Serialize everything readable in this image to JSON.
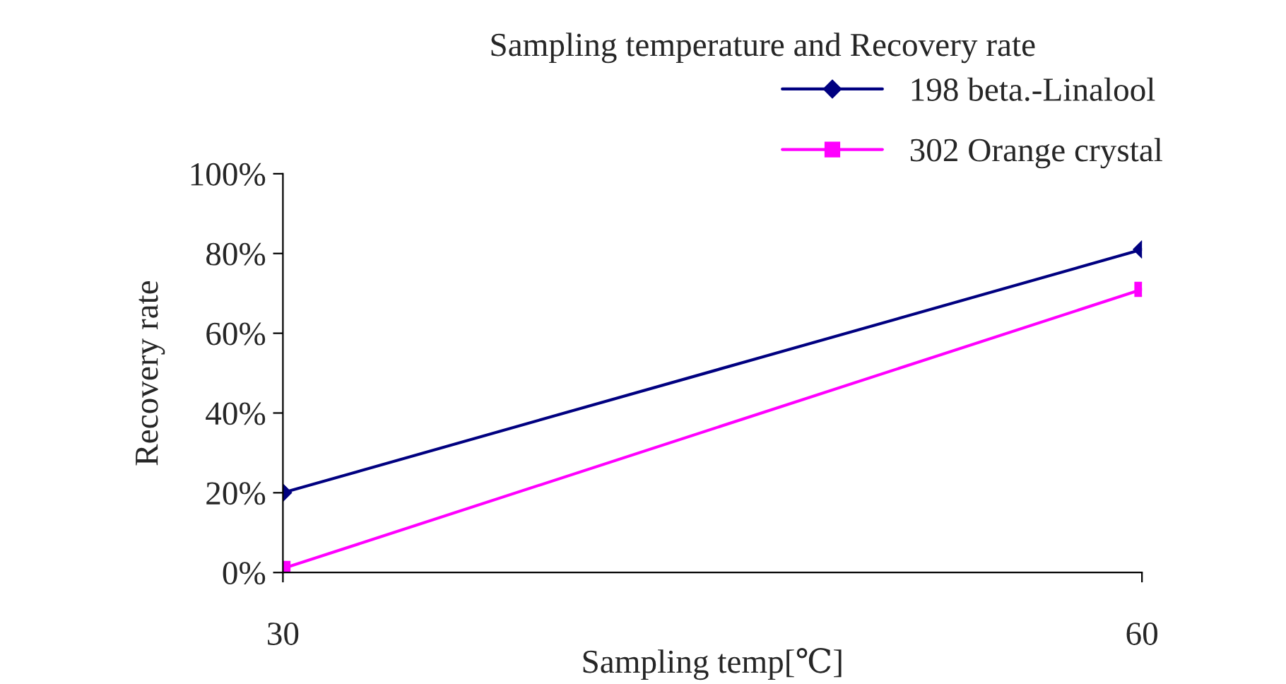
{
  "chart_data": {
    "type": "line",
    "title": "Sampling temperature and Recovery rate",
    "xlabel": "Sampling temp[℃]",
    "ylabel": "Recovery rate",
    "x": [
      30,
      60
    ],
    "xlim": [
      30,
      60
    ],
    "xticks": [
      30,
      60
    ],
    "ylim": [
      0,
      100
    ],
    "yticks": [
      {
        "value": 0,
        "label": "0%"
      },
      {
        "value": 20,
        "label": "20%"
      },
      {
        "value": 40,
        "label": "40%"
      },
      {
        "value": 60,
        "label": "60%"
      },
      {
        "value": 80,
        "label": "80%"
      },
      {
        "value": 100,
        "label": "100%"
      }
    ],
    "series": [
      {
        "name": "198 beta.-Linalool",
        "color": "#000080",
        "values": [
          20,
          81
        ],
        "marker": "diamond"
      },
      {
        "name": "302 Orange crystal",
        "color": "#ff00ff",
        "values": [
          1,
          71
        ],
        "marker": "square"
      }
    ],
    "grid": false,
    "legend": "top right",
    "line_style": "solid"
  }
}
